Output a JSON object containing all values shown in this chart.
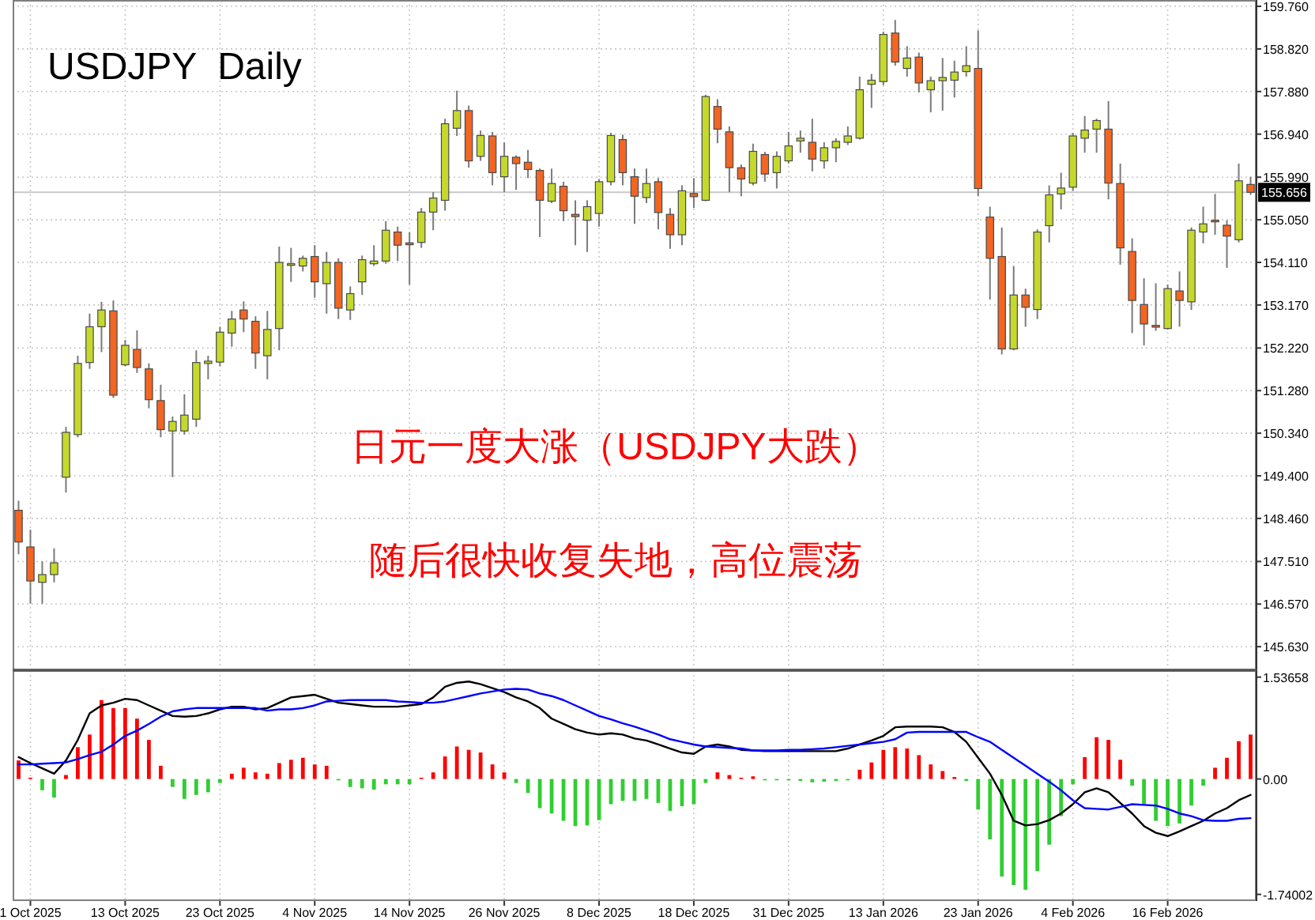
{
  "chart_data": [
    {
      "type": "candlestick",
      "title": "USDJPY  Daily",
      "annotations": [
        "日元一度大涨（USDJPY大跌）",
        "随后很快收复失地，高位震荡"
      ],
      "categories": [
        null,
        null,
        null,
        null,
        null,
        null,
        null,
        null,
        null,
        null,
        null,
        null,
        null,
        null,
        null,
        null,
        null,
        null,
        null,
        null,
        null,
        null,
        null,
        null,
        null,
        null,
        null,
        null,
        null,
        null,
        null,
        null,
        null,
        null,
        null,
        null,
        null,
        null,
        null,
        null,
        null,
        null,
        null,
        null,
        null,
        null,
        null,
        null,
        null,
        null,
        null,
        null,
        null,
        null,
        null,
        null,
        null,
        null,
        null,
        null,
        null,
        null,
        null,
        null,
        null,
        null,
        null,
        null,
        null,
        null,
        null,
        null,
        null,
        null,
        null,
        null,
        null,
        null,
        null,
        null,
        null,
        null,
        null,
        null,
        null,
        null,
        null,
        null,
        null,
        null,
        null,
        null,
        null,
        null,
        null,
        null,
        null,
        null,
        null,
        null,
        null,
        null,
        null,
        null,
        null
      ],
      "ohlc": [
        [
          148.64,
          148.85,
          147.67,
          147.94
        ],
        [
          147.83,
          148.21,
          146.58,
          147.08
        ],
        [
          147.05,
          147.51,
          146.58,
          147.22
        ],
        [
          147.22,
          147.8,
          147.05,
          147.48
        ],
        [
          149.37,
          150.48,
          149.03,
          150.36
        ],
        [
          150.31,
          152.05,
          150.25,
          151.88
        ],
        [
          151.9,
          152.98,
          151.76,
          152.69
        ],
        [
          152.69,
          153.24,
          152.13,
          153.06
        ],
        [
          153.04,
          153.27,
          151.12,
          151.18
        ],
        [
          151.85,
          152.4,
          151.82,
          152.28
        ],
        [
          152.19,
          152.61,
          151.67,
          151.79
        ],
        [
          151.76,
          151.88,
          150.89,
          151.08
        ],
        [
          151.06,
          151.41,
          150.25,
          150.42
        ],
        [
          150.39,
          150.71,
          149.37,
          150.6
        ],
        [
          150.39,
          151.2,
          150.31,
          150.74
        ],
        [
          150.65,
          152.17,
          150.48,
          151.9
        ],
        [
          151.88,
          152.05,
          151.53,
          151.93
        ],
        [
          151.91,
          152.69,
          151.82,
          152.57
        ],
        [
          152.55,
          153.04,
          152.25,
          152.86
        ],
        [
          153.06,
          153.25,
          152.57,
          152.86
        ],
        [
          152.81,
          152.92,
          151.76,
          152.11
        ],
        [
          152.05,
          153.04,
          151.53,
          152.63
        ],
        [
          152.65,
          154.46,
          152.17,
          154.11
        ],
        [
          154.06,
          154.43,
          153.68,
          154.08
        ],
        [
          154.03,
          154.26,
          153.91,
          154.2
        ],
        [
          154.24,
          154.49,
          153.33,
          153.68
        ],
        [
          153.64,
          154.34,
          152.98,
          154.11
        ],
        [
          154.11,
          154.2,
          152.86,
          153.1
        ],
        [
          153.06,
          153.58,
          152.84,
          153.42
        ],
        [
          153.68,
          154.26,
          153.39,
          154.17
        ],
        [
          154.08,
          154.49,
          154.03,
          154.14
        ],
        [
          154.14,
          155.02,
          154.08,
          154.82
        ],
        [
          154.78,
          154.9,
          154.14,
          154.49
        ],
        [
          154.54,
          154.78,
          153.62,
          154.5
        ],
        [
          154.55,
          155.31,
          154.43,
          155.22
        ],
        [
          155.22,
          155.66,
          154.82,
          155.53
        ],
        [
          155.48,
          157.28,
          155.25,
          157.17
        ],
        [
          157.07,
          157.9,
          156.9,
          157.46
        ],
        [
          157.46,
          157.57,
          156.2,
          156.35
        ],
        [
          156.45,
          157.02,
          156.35,
          156.91
        ],
        [
          156.9,
          156.99,
          155.81,
          156.09
        ],
        [
          156.0,
          156.76,
          155.66,
          156.45
        ],
        [
          156.43,
          156.47,
          155.71,
          156.29
        ],
        [
          156.32,
          156.59,
          155.97,
          156.16
        ],
        [
          156.14,
          156.18,
          154.67,
          155.48
        ],
        [
          155.46,
          156.18,
          155.42,
          155.85
        ],
        [
          155.79,
          155.89,
          155.02,
          155.25
        ],
        [
          155.17,
          155.48,
          154.49,
          155.12
        ],
        [
          155.04,
          155.48,
          154.34,
          155.34
        ],
        [
          155.19,
          155.95,
          154.9,
          155.89
        ],
        [
          155.89,
          156.97,
          155.81,
          156.91
        ],
        [
          156.82,
          156.93,
          155.81,
          156.09
        ],
        [
          156.0,
          156.18,
          154.96,
          155.57
        ],
        [
          155.54,
          156.18,
          155.42,
          155.85
        ],
        [
          155.89,
          155.97,
          154.84,
          155.21
        ],
        [
          155.17,
          155.31,
          154.41,
          154.72
        ],
        [
          154.72,
          155.81,
          154.49,
          155.69
        ],
        [
          155.63,
          155.97,
          155.31,
          155.56
        ],
        [
          155.48,
          157.81,
          155.46,
          157.77
        ],
        [
          157.55,
          157.71,
          156.74,
          157.05
        ],
        [
          156.99,
          157.11,
          155.66,
          156.2
        ],
        [
          156.2,
          156.27,
          155.57,
          155.95
        ],
        [
          155.86,
          156.73,
          155.81,
          156.56
        ],
        [
          156.49,
          156.55,
          155.89,
          156.06
        ],
        [
          156.09,
          156.56,
          155.74,
          156.45
        ],
        [
          156.35,
          156.99,
          156.29,
          156.68
        ],
        [
          156.79,
          157.02,
          156.53,
          156.85
        ],
        [
          156.76,
          157.28,
          156.12,
          156.39
        ],
        [
          156.35,
          156.76,
          156.18,
          156.64
        ],
        [
          156.64,
          156.85,
          156.32,
          156.78
        ],
        [
          156.76,
          157.11,
          156.7,
          156.9
        ],
        [
          156.85,
          158.21,
          156.82,
          157.92
        ],
        [
          158.04,
          158.27,
          157.52,
          158.13
        ],
        [
          158.1,
          159.2,
          158.02,
          159.14
        ],
        [
          159.17,
          159.46,
          158.45,
          158.53
        ],
        [
          158.39,
          158.88,
          158.21,
          158.62
        ],
        [
          158.64,
          158.74,
          157.86,
          158.07
        ],
        [
          157.92,
          158.21,
          157.42,
          158.12
        ],
        [
          158.12,
          158.62,
          157.46,
          158.19
        ],
        [
          158.13,
          158.56,
          157.75,
          158.31
        ],
        [
          158.32,
          158.88,
          158.21,
          158.45
        ],
        [
          158.39,
          159.23,
          155.57,
          155.74
        ],
        [
          155.11,
          155.34,
          153.29,
          154.2
        ],
        [
          154.24,
          154.88,
          152.08,
          152.2
        ],
        [
          152.2,
          154.03,
          152.17,
          153.39
        ],
        [
          153.39,
          153.53,
          152.69,
          153.12
        ],
        [
          153.07,
          154.84,
          152.86,
          154.78
        ],
        [
          154.92,
          155.81,
          154.55,
          155.6
        ],
        [
          155.62,
          156.09,
          155.28,
          155.75
        ],
        [
          155.77,
          156.97,
          155.69,
          156.9
        ],
        [
          156.85,
          157.34,
          156.53,
          157.03
        ],
        [
          157.05,
          157.28,
          156.53,
          157.24
        ],
        [
          157.05,
          157.67,
          155.5,
          155.86
        ],
        [
          155.85,
          156.29,
          154.06,
          154.43
        ],
        [
          154.35,
          154.64,
          152.55,
          153.27
        ],
        [
          153.18,
          153.76,
          152.28,
          152.75
        ],
        [
          152.72,
          153.65,
          152.6,
          152.68
        ],
        [
          152.65,
          153.62,
          152.63,
          153.53
        ],
        [
          153.48,
          153.91,
          152.69,
          153.27
        ],
        [
          153.24,
          154.88,
          153.06,
          154.82
        ],
        [
          154.78,
          155.34,
          154.53,
          154.96
        ],
        [
          155.04,
          155.62,
          154.72,
          155.02
        ],
        [
          154.93,
          155.04,
          153.99,
          154.69
        ],
        [
          154.61,
          156.29,
          154.55,
          155.91
        ],
        [
          155.83,
          156.0,
          155.6,
          155.656
        ]
      ],
      "colors": [
        "#f26522",
        "#f26522",
        "#c5d92d",
        "#c5d92d",
        "#c5d92d",
        "#c5d92d",
        "#c5d92d",
        "#c5d92d",
        "#f26522",
        "#c5d92d",
        "#f26522",
        "#f26522",
        "#f26522",
        "#c5d92d",
        "#c5d92d",
        "#c5d92d",
        "#c5d92d",
        "#c5d92d",
        "#c5d92d",
        "#f26522",
        "#f26522",
        "#c5d92d",
        "#c5d92d",
        "#c5d92d",
        "#c5d92d",
        "#f26522",
        "#c5d92d",
        "#f26522",
        "#c5d92d",
        "#c5d92d",
        "#c5d92d",
        "#c5d92d",
        "#f26522",
        "#f26522",
        "#c5d92d",
        "#c5d92d",
        "#c5d92d",
        "#c5d92d",
        "#f26522",
        "#c5d92d",
        "#f26522",
        "#c5d92d",
        "#f26522",
        "#f26522",
        "#f26522",
        "#c5d92d",
        "#f26522",
        "#f26522",
        "#c5d92d",
        "#c5d92d",
        "#c5d92d",
        "#f26522",
        "#f26522",
        "#c5d92d",
        "#f26522",
        "#f26522",
        "#c5d92d",
        "#f26522",
        "#c5d92d",
        "#f26522",
        "#f26522",
        "#f26522",
        "#c5d92d",
        "#f26522",
        "#c5d92d",
        "#c5d92d",
        "#c5d92d",
        "#f26522",
        "#c5d92d",
        "#c5d92d",
        "#c5d92d",
        "#c5d92d",
        "#c5d92d",
        "#c5d92d",
        "#f26522",
        "#c5d92d",
        "#f26522",
        "#c5d92d",
        "#c5d92d",
        "#c5d92d",
        "#c5d92d",
        "#f26522",
        "#f26522",
        "#f26522",
        "#c5d92d",
        "#f26522",
        "#c5d92d",
        "#c5d92d",
        "#c5d92d",
        "#c5d92d",
        "#c5d92d",
        "#c5d92d",
        "#f26522",
        "#f26522",
        "#f26522",
        "#f26522",
        "#f26522",
        "#c5d92d",
        "#f26522",
        "#c5d92d",
        "#c5d92d",
        "#f26522",
        "#f26522",
        "#c5d92d",
        "#f26522"
      ],
      "ylim": [
        145.11,
        159.9
      ],
      "yticks": [
        {
          "value": 159.76,
          "label": "159.760"
        },
        {
          "value": 158.82,
          "label": "158.820"
        },
        {
          "value": 157.88,
          "label": "157.880"
        },
        {
          "value": 156.94,
          "label": "156.940"
        },
        {
          "value": 155.99,
          "label": "155.990"
        },
        {
          "value": 155.05,
          "label": "155.050"
        },
        {
          "value": 154.11,
          "label": "154.110"
        },
        {
          "value": 153.17,
          "label": "153.170"
        },
        {
          "value": 152.22,
          "label": "152.220"
        },
        {
          "value": 151.28,
          "label": "151.280"
        },
        {
          "value": 150.34,
          "label": "150.340"
        },
        {
          "value": 149.4,
          "label": "149.400"
        },
        {
          "value": 148.46,
          "label": "148.460"
        },
        {
          "value": 147.51,
          "label": "147.510"
        },
        {
          "value": 146.57,
          "label": "146.570"
        },
        {
          "value": 145.63,
          "label": "145.630"
        }
      ],
      "ref_lines": [
        {
          "axis": "y",
          "value": 155.656,
          "label": "155.656",
          "color": "#c8c8c8"
        }
      ],
      "grid": true,
      "tick_labels": "y"
    },
    {
      "type": "bar",
      "categories": [
        null,
        "1 Oct 2025",
        null,
        null,
        null,
        null,
        null,
        null,
        null,
        "13 Oct 2025",
        null,
        null,
        null,
        null,
        null,
        null,
        null,
        "23 Oct 2025",
        null,
        null,
        null,
        null,
        null,
        null,
        null,
        "4 Nov 2025",
        null,
        null,
        null,
        null,
        null,
        null,
        null,
        "14 Nov 2025",
        null,
        null,
        null,
        null,
        null,
        null,
        null,
        "26 Nov 2025",
        null,
        null,
        null,
        null,
        null,
        null,
        null,
        "8 Dec 2025",
        null,
        null,
        null,
        null,
        null,
        null,
        null,
        "18 Dec 2025",
        null,
        null,
        null,
        null,
        null,
        null,
        null,
        "31 Dec 2025",
        null,
        null,
        null,
        null,
        null,
        null,
        null,
        "13 Jan 2026",
        null,
        null,
        null,
        null,
        null,
        null,
        null,
        "23 Jan 2026",
        null,
        null,
        null,
        null,
        null,
        null,
        null,
        "4 Feb 2026",
        null,
        null,
        null,
        null,
        null,
        null,
        null,
        "16 Feb 2026",
        null,
        null,
        null,
        null,
        null,
        null,
        null
      ],
      "series": [
        {
          "type": "bar",
          "values": [
            0.28,
            0.02,
            -0.17,
            -0.28,
            0.06,
            0.48,
            0.67,
            1.19,
            1.07,
            1.07,
            0.91,
            0.59,
            0.2,
            -0.12,
            -0.3,
            -0.24,
            -0.2,
            -0.06,
            0.08,
            0.17,
            0.1,
            0.08,
            0.24,
            0.29,
            0.32,
            0.22,
            0.2,
            -0.02,
            -0.12,
            -0.14,
            -0.16,
            -0.08,
            -0.08,
            -0.08,
            0.02,
            0.1,
            0.34,
            0.49,
            0.44,
            0.4,
            0.22,
            0.1,
            -0.06,
            -0.21,
            -0.44,
            -0.52,
            -0.63,
            -0.71,
            -0.7,
            -0.62,
            -0.38,
            -0.33,
            -0.33,
            -0.3,
            -0.36,
            -0.48,
            -0.41,
            -0.38,
            -0.06,
            0.1,
            0.06,
            0.02,
            0.04,
            -0.02,
            -0.02,
            -0.02,
            -0.03,
            -0.05,
            -0.04,
            -0.03,
            -0.02,
            0.14,
            0.25,
            0.44,
            0.48,
            0.46,
            0.36,
            0.22,
            0.12,
            0.03,
            -0.03,
            -0.46,
            -0.91,
            -1.47,
            -1.6,
            -1.67,
            -1.39,
            -0.99,
            -0.56,
            -0.08,
            0.33,
            0.63,
            0.59,
            0.29,
            -0.1,
            -0.38,
            -0.63,
            -0.71,
            -0.67,
            -0.4,
            -0.1,
            0.17,
            0.32,
            0.57,
            0.67
          ],
          "colors": [
            "#ff0000",
            "#ff0000",
            "#32cd32",
            "#32cd32",
            "#ff0000",
            "#ff0000",
            "#ff0000",
            "#ff0000",
            "#ff0000",
            "#ff0000",
            "#ff0000",
            "#ff0000",
            "#ff0000",
            "#32cd32",
            "#32cd32",
            "#32cd32",
            "#32cd32",
            "#32cd32",
            "#ff0000",
            "#ff0000",
            "#ff0000",
            "#ff0000",
            "#ff0000",
            "#ff0000",
            "#ff0000",
            "#ff0000",
            "#ff0000",
            "#32cd32",
            "#32cd32",
            "#32cd32",
            "#32cd32",
            "#32cd32",
            "#32cd32",
            "#32cd32",
            "#ff0000",
            "#ff0000",
            "#ff0000",
            "#ff0000",
            "#ff0000",
            "#ff0000",
            "#ff0000",
            "#ff0000",
            "#32cd32",
            "#32cd32",
            "#32cd32",
            "#32cd32",
            "#32cd32",
            "#32cd32",
            "#32cd32",
            "#32cd32",
            "#32cd32",
            "#32cd32",
            "#32cd32",
            "#32cd32",
            "#32cd32",
            "#32cd32",
            "#32cd32",
            "#32cd32",
            "#32cd32",
            "#ff0000",
            "#ff0000",
            "#ff0000",
            "#ff0000",
            "#32cd32",
            "#32cd32",
            "#32cd32",
            "#32cd32",
            "#32cd32",
            "#32cd32",
            "#32cd32",
            "#32cd32",
            "#ff0000",
            "#ff0000",
            "#ff0000",
            "#ff0000",
            "#ff0000",
            "#ff0000",
            "#ff0000",
            "#ff0000",
            "#ff0000",
            "#32cd32",
            "#32cd32",
            "#32cd32",
            "#32cd32",
            "#32cd32",
            "#32cd32",
            "#32cd32",
            "#32cd32",
            "#32cd32",
            "#32cd32",
            "#ff0000",
            "#ff0000",
            "#ff0000",
            "#ff0000",
            "#32cd32",
            "#32cd32",
            "#32cd32",
            "#32cd32",
            "#32cd32",
            "#32cd32",
            "#32cd32",
            "#ff0000",
            "#ff0000",
            "#ff0000",
            "#ff0000"
          ]
        },
        {
          "type": "line",
          "color": "#000000",
          "values": [
            0.33,
            0.24,
            0.16,
            0.08,
            0.28,
            0.59,
            0.99,
            1.11,
            1.15,
            1.21,
            1.19,
            1.11,
            1.03,
            0.95,
            0.94,
            0.95,
            0.99,
            1.05,
            1.09,
            1.09,
            1.05,
            1.07,
            1.15,
            1.23,
            1.25,
            1.27,
            1.21,
            1.15,
            1.13,
            1.11,
            1.09,
            1.09,
            1.09,
            1.11,
            1.13,
            1.23,
            1.39,
            1.45,
            1.47,
            1.43,
            1.37,
            1.31,
            1.23,
            1.17,
            1.07,
            0.91,
            0.83,
            0.75,
            0.7,
            0.67,
            0.69,
            0.67,
            0.61,
            0.58,
            0.52,
            0.46,
            0.4,
            0.38,
            0.49,
            0.52,
            0.49,
            0.44,
            0.43,
            0.42,
            0.42,
            0.42,
            0.42,
            0.42,
            0.42,
            0.42,
            0.46,
            0.52,
            0.58,
            0.65,
            0.78,
            0.79,
            0.79,
            0.79,
            0.78,
            0.71,
            0.56,
            0.32,
            0.08,
            -0.24,
            -0.63,
            -0.7,
            -0.68,
            -0.62,
            -0.52,
            -0.38,
            -0.2,
            -0.14,
            -0.2,
            -0.36,
            -0.52,
            -0.71,
            -0.81,
            -0.86,
            -0.79,
            -0.71,
            -0.63,
            -0.52,
            -0.44,
            -0.32,
            -0.24
          ]
        },
        {
          "type": "line",
          "color": "#0000ff",
          "values": [
            0.22,
            0.22,
            0.23,
            0.24,
            0.25,
            0.3,
            0.36,
            0.41,
            0.52,
            0.65,
            0.73,
            0.83,
            0.94,
            1.02,
            1.05,
            1.07,
            1.07,
            1.07,
            1.07,
            1.07,
            1.07,
            1.03,
            1.05,
            1.05,
            1.07,
            1.11,
            1.17,
            1.18,
            1.19,
            1.19,
            1.19,
            1.19,
            1.17,
            1.16,
            1.15,
            1.15,
            1.17,
            1.21,
            1.25,
            1.29,
            1.32,
            1.35,
            1.36,
            1.35,
            1.29,
            1.25,
            1.19,
            1.11,
            1.03,
            0.95,
            0.9,
            0.84,
            0.79,
            0.73,
            0.67,
            0.6,
            0.56,
            0.52,
            0.49,
            0.48,
            0.47,
            0.46,
            0.43,
            0.43,
            0.43,
            0.44,
            0.44,
            0.45,
            0.46,
            0.48,
            0.5,
            0.52,
            0.54,
            0.56,
            0.6,
            0.7,
            0.71,
            0.71,
            0.71,
            0.71,
            0.71,
            0.63,
            0.56,
            0.44,
            0.32,
            0.2,
            0.08,
            -0.04,
            -0.17,
            -0.32,
            -0.44,
            -0.45,
            -0.46,
            -0.42,
            -0.38,
            -0.39,
            -0.4,
            -0.45,
            -0.52,
            -0.56,
            -0.62,
            -0.63,
            -0.63,
            -0.6,
            -0.59
          ]
        }
      ],
      "ylim": [
        -1.84,
        1.64
      ],
      "yticks": [
        1.53658,
        {
          "value": 0,
          "label": "0.00"
        },
        -1.74002
      ],
      "grid": "x"
    }
  ]
}
